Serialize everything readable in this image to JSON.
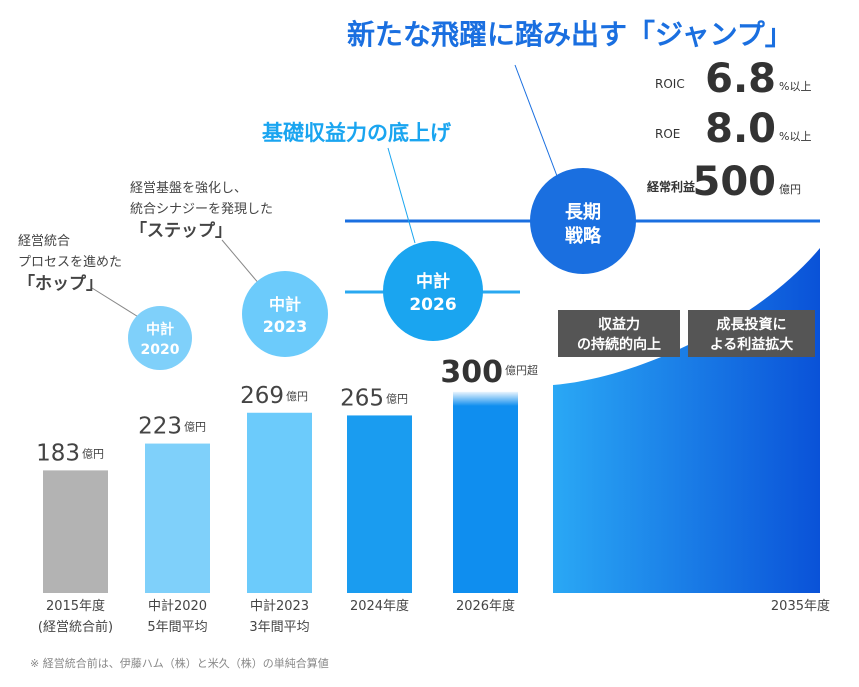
{
  "headline": "新たな飛躍に踏み出す「ジャンプ」",
  "subheadline": "基礎収益力の底上げ",
  "annotations": [
    {
      "lines": [
        "経営統合",
        "プロセスを進めた",
        "「ホップ」"
      ]
    },
    {
      "lines": [
        "経営基盤を強化し、",
        "統合シナジーを発現した",
        "「ステップ」"
      ]
    }
  ],
  "plans": [
    {
      "lines": [
        "中計",
        "2020"
      ]
    },
    {
      "lines": [
        "中計",
        "2023"
      ]
    },
    {
      "lines": [
        "中計",
        "2026"
      ]
    }
  ],
  "strategy": {
    "lines": [
      "長期",
      "戦略"
    ]
  },
  "targets": [
    {
      "label": "ROIC",
      "value": "6.8",
      "unit": "%以上"
    },
    {
      "label": "ROE",
      "value": "8.0",
      "unit": "%以上"
    },
    {
      "label": "経常利益",
      "value": "500",
      "unit": "億円"
    }
  ],
  "chart_data": {
    "type": "bar",
    "categories": [
      [
        "2015年度",
        "(経営統合前)"
      ],
      [
        "中計2020",
        "5年間平均"
      ],
      [
        "中計2023",
        "3年間平均"
      ],
      [
        "2024年度"
      ],
      [
        "2026年度"
      ]
    ],
    "values": [
      183,
      223,
      269,
      265,
      300
    ],
    "value_units": [
      "億円",
      "億円",
      "億円",
      "億円",
      "億円超"
    ],
    "colors": [
      "#b3b3b3",
      "#7fd0fa",
      "#6ccbfb",
      "#1a9cf0",
      "#0f8eef"
    ],
    "ylim": [
      0,
      885
    ],
    "area_label": "2035年度",
    "area_notes": [
      [
        "収益力",
        "の持続的向上"
      ],
      [
        "成長投資に",
        "よる利益拡大"
      ]
    ]
  },
  "footnote": "※ 経営統合前は、伊藤ハム（株）と米久（株）の単純合算値"
}
